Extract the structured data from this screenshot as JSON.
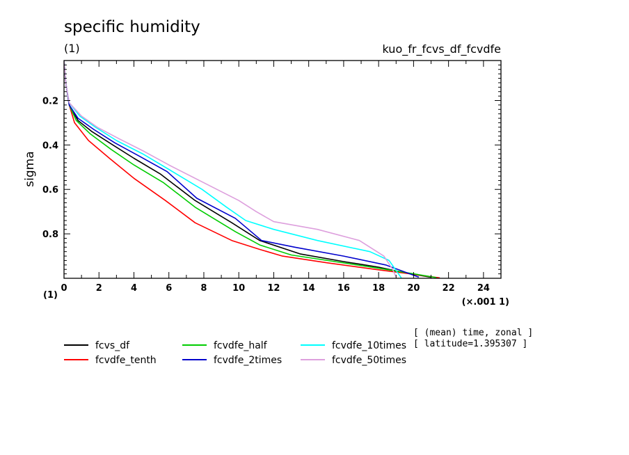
{
  "chart_data": {
    "type": "line",
    "title": "specific humidity",
    "units": "(1)",
    "experiment": "kuo_fr_fcvs_df_fcvdfe",
    "ylabel": "sigma",
    "y_units": "(1)",
    "x_units": "(×.001 1)",
    "x_scale_note": "×0.001",
    "xlim": [
      0,
      25
    ],
    "ylim": [
      0.02,
      1.0
    ],
    "y_inverted": true,
    "x_ticks": [
      0,
      2,
      4,
      6,
      8,
      10,
      12,
      14,
      16,
      18,
      20,
      22,
      24
    ],
    "y_ticks": [
      0.2,
      0.4,
      0.6,
      0.8
    ],
    "info_lines": [
      "[ (mean) time, zonal ]",
      "[ latitude=1.395307 ]"
    ],
    "legend_placement": "bottom",
    "series": [
      {
        "name": "fcvs_df",
        "color": "#000000",
        "x": [
          0,
          0.1,
          0.3,
          0.8,
          1.6,
          2.8,
          4.0,
          5.5,
          7.5,
          9.6,
          11.2,
          13.5,
          16.0,
          18.0,
          19.8,
          21.0
        ],
        "y": [
          0.02,
          0.12,
          0.22,
          0.29,
          0.34,
          0.4,
          0.46,
          0.53,
          0.65,
          0.75,
          0.83,
          0.89,
          0.925,
          0.95,
          0.98,
          0.995
        ]
      },
      {
        "name": "fcvdfe_tenth",
        "color": "#ff0000",
        "x": [
          0,
          0.1,
          0.3,
          0.6,
          1.4,
          2.6,
          4.0,
          5.8,
          7.5,
          9.6,
          11.2,
          12.5,
          15.0,
          17.8,
          19.8,
          21.5
        ],
        "y": [
          0.02,
          0.12,
          0.22,
          0.3,
          0.38,
          0.46,
          0.55,
          0.65,
          0.75,
          0.83,
          0.87,
          0.9,
          0.93,
          0.96,
          0.98,
          0.998
        ]
      },
      {
        "name": "fcvdfe_half",
        "color": "#00cc00",
        "x": [
          0,
          0.1,
          0.3,
          0.7,
          1.5,
          2.7,
          4.0,
          5.7,
          7.5,
          9.8,
          11.2,
          13.0,
          15.5,
          18.0,
          20.0,
          21.3
        ],
        "y": [
          0.02,
          0.12,
          0.22,
          0.29,
          0.35,
          0.42,
          0.49,
          0.57,
          0.68,
          0.79,
          0.85,
          0.895,
          0.925,
          0.955,
          0.98,
          0.997
        ]
      },
      {
        "name": "fcvdfe_2times",
        "color": "#0000cc",
        "x": [
          0,
          0.1,
          0.3,
          0.8,
          1.7,
          2.9,
          4.3,
          5.9,
          7.6,
          9.8,
          11.3,
          13.2,
          16.0,
          18.4,
          20.3
        ],
        "y": [
          0.02,
          0.12,
          0.22,
          0.28,
          0.33,
          0.39,
          0.45,
          0.52,
          0.64,
          0.73,
          0.83,
          0.86,
          0.9,
          0.94,
          0.995
        ]
      },
      {
        "name": "fcvdfe_10times",
        "color": "#00ffff",
        "x": [
          0,
          0.1,
          0.3,
          0.9,
          1.8,
          3.0,
          4.5,
          6.0,
          7.9,
          9.3,
          10.4,
          12.0,
          14.5,
          17.5,
          18.6,
          19.3
        ],
        "y": [
          0.02,
          0.12,
          0.21,
          0.27,
          0.32,
          0.38,
          0.44,
          0.51,
          0.6,
          0.68,
          0.74,
          0.78,
          0.83,
          0.88,
          0.92,
          0.998
        ]
      },
      {
        "name": "fcvdfe_50times",
        "color": "#dd9fdd",
        "x": [
          0,
          0.1,
          0.3,
          1.0,
          1.9,
          3.1,
          4.6,
          6.0,
          8.0,
          10.0,
          11.0,
          12.0,
          14.5,
          16.9,
          18.3,
          18.8,
          19.0
        ],
        "y": [
          0.02,
          0.12,
          0.21,
          0.27,
          0.32,
          0.37,
          0.43,
          0.49,
          0.57,
          0.65,
          0.7,
          0.745,
          0.78,
          0.83,
          0.9,
          0.96,
          0.995
        ]
      }
    ]
  }
}
